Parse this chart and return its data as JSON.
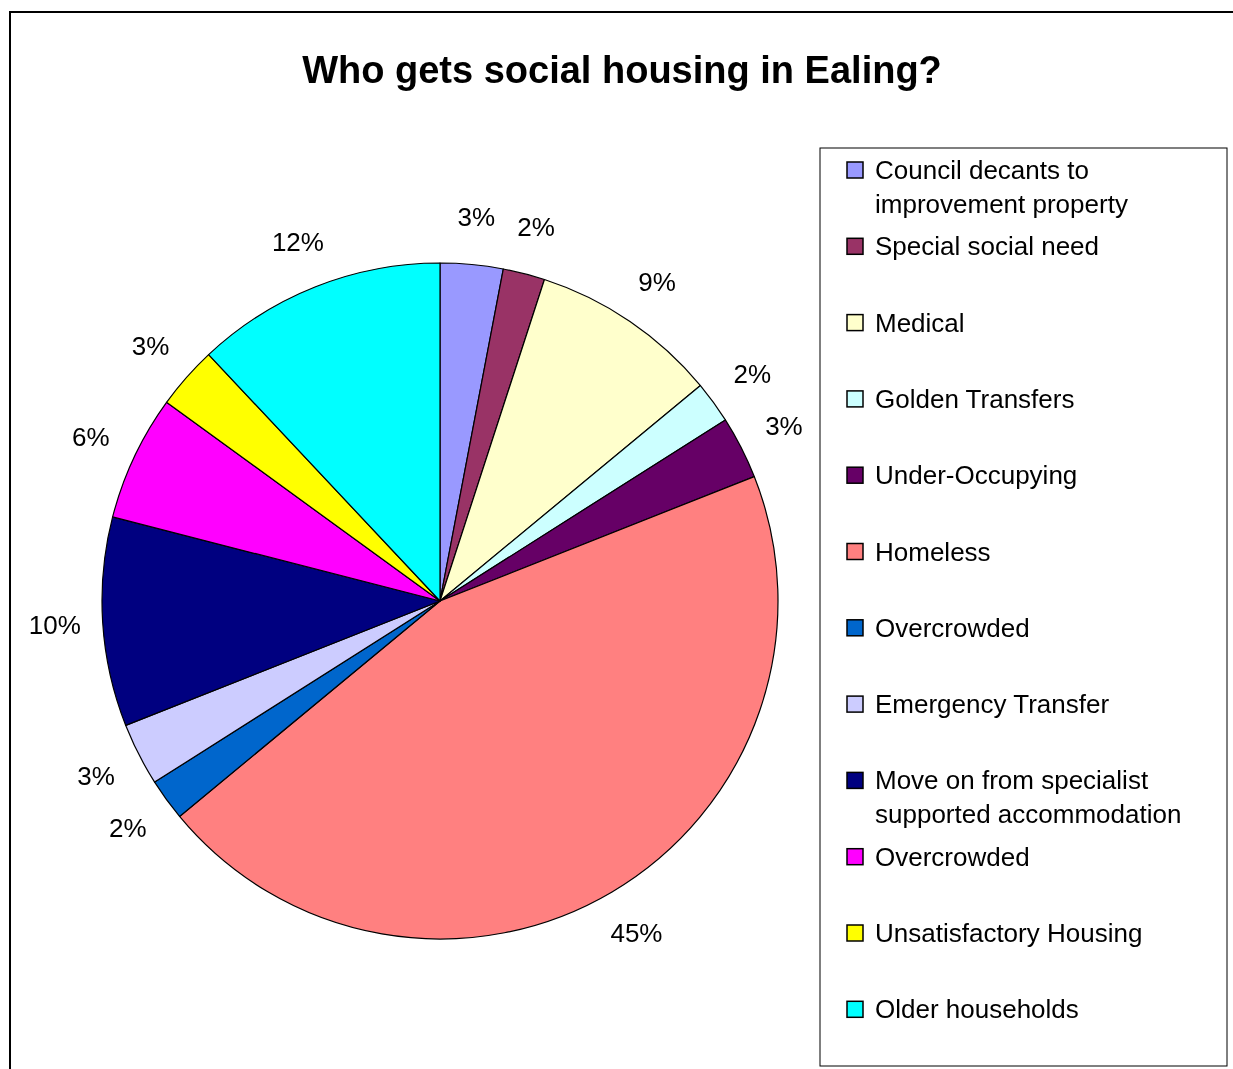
{
  "chart_data": {
    "type": "pie",
    "title": "Who gets social housing in Ealing?",
    "categories": [
      "Council decants to improvement property",
      "Special social need",
      "Medical",
      "Golden Transfers",
      "Under-Occupying",
      "Homeless",
      "Overcrowded",
      "Emergency Transfer",
      "Move on from specialist supported accommodation",
      "Overcrowded",
      "Unsatisfactory Housing",
      "Older households"
    ],
    "values": [
      3,
      2,
      9,
      2,
      3,
      45,
      2,
      3,
      10,
      6,
      3,
      12
    ],
    "value_labels": [
      "3%",
      "2%",
      "9%",
      "2%",
      "3%",
      "45%",
      "2%",
      "3%",
      "10%",
      "6%",
      "3%",
      "12%"
    ],
    "colors": [
      "#9999ff",
      "#993366",
      "#ffffcc",
      "#ccffff",
      "#660066",
      "#ff8080",
      "#0066cc",
      "#ccccff",
      "#000080",
      "#ff00ff",
      "#ffff00",
      "#00ffff"
    ],
    "legend": "right"
  }
}
